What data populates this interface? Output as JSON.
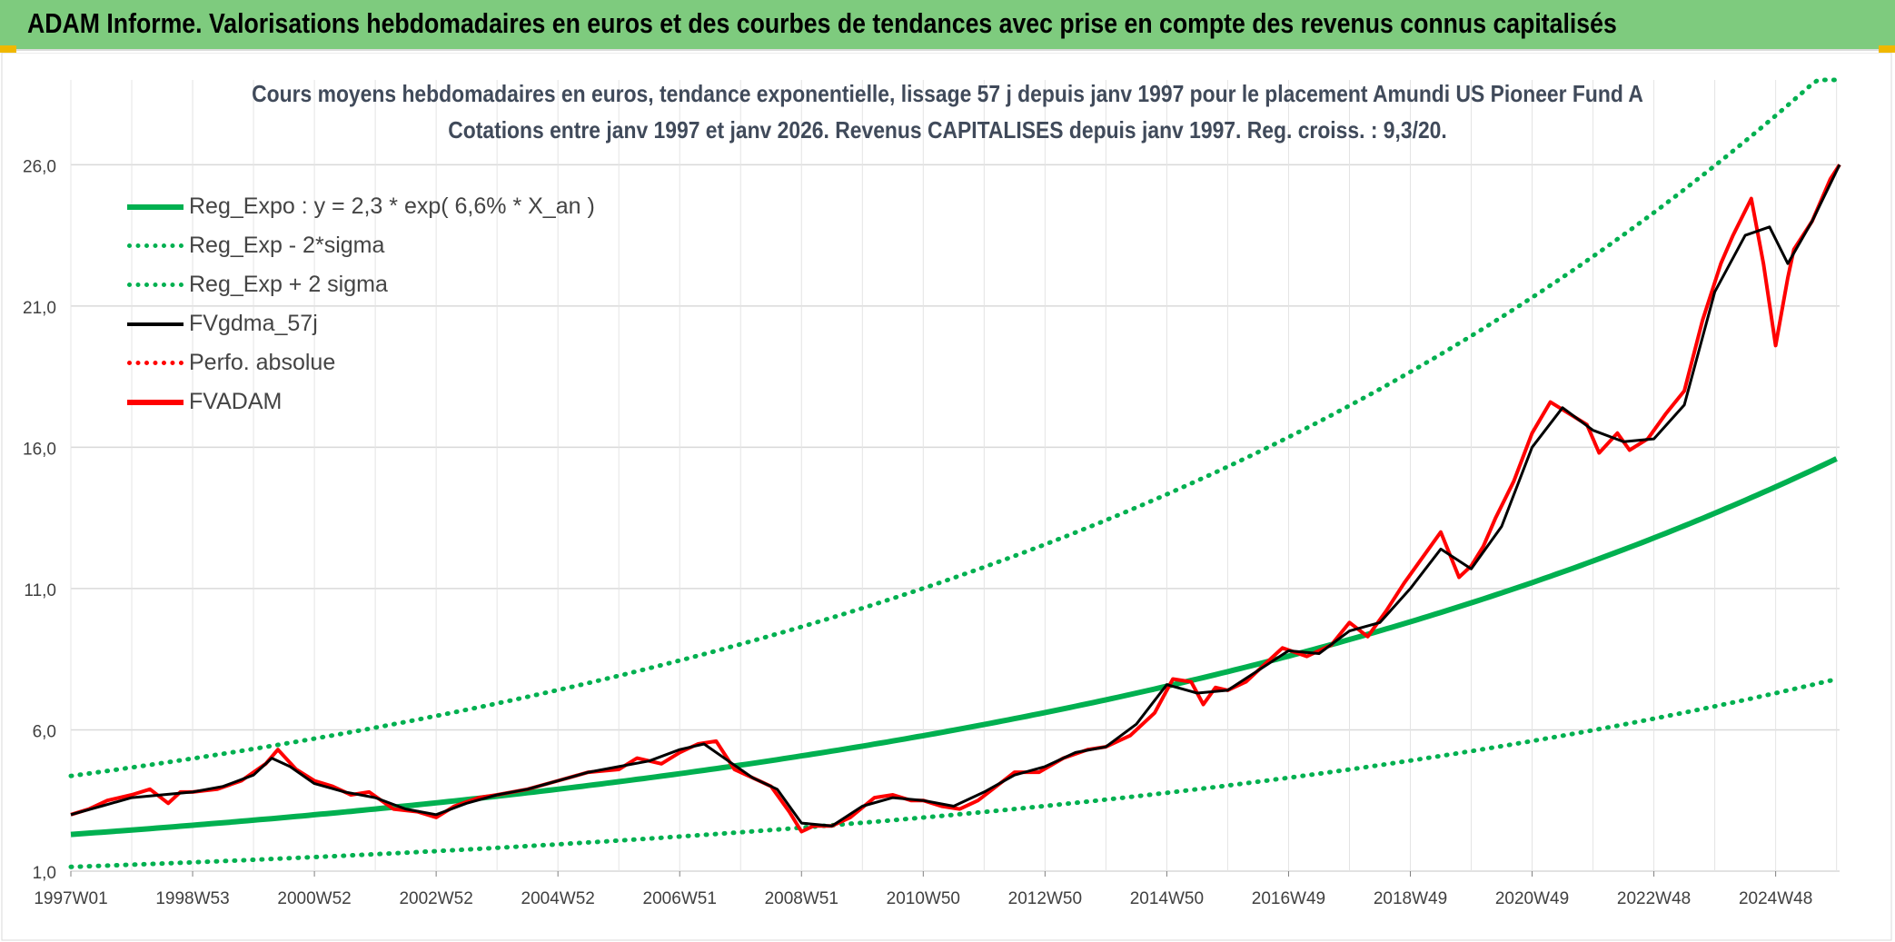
{
  "header": {
    "title": "ADAM Informe. Valorisations hebdomadaires en euros et des courbes de tendances avec prise en compte des revenus connus capitalisés"
  },
  "colors": {
    "header_bg": "#7ecb7e",
    "reg_expo": "#00b050",
    "fvgdma": "#000000",
    "fvadam": "#ff0000",
    "grid": "#d9d9d9"
  },
  "chart_data": {
    "type": "line",
    "title": "Cours moyens hebdomadaires en euros, tendance exponentielle, lissage 57 j depuis janv 1997 pour le placement Amundi US Pioneer Fund A",
    "subtitle": "Cotations entre janv 1997 et janv 2026. Revenus CAPITALISES depuis janv 1997. Reg. croiss. : 9,3/20.",
    "xlabel": "",
    "ylabel": "",
    "ylim": [
      1.0,
      29.0
    ],
    "y_ticks": [
      "1,0",
      "6,0",
      "11,0",
      "16,0",
      "21,0",
      "26,0"
    ],
    "y_tick_values": [
      1,
      6,
      11,
      16,
      21,
      26
    ],
    "x_ticks": [
      "1997W01",
      "1998W53",
      "2000W52",
      "2002W52",
      "2004W52",
      "2006W51",
      "2008W51",
      "2010W50",
      "2012W50",
      "2014W50",
      "2016W49",
      "2018W49",
      "2020W49",
      "2022W48",
      "2024W48"
    ],
    "x_range_years": [
      1997.0,
      2026.05
    ],
    "grid": true,
    "legend_position": "top-left",
    "legend": [
      {
        "label": "Reg_Expo : y = 2,3 * exp( 6,6% *  X_an )",
        "color": "#00b050",
        "style": "solid-thick"
      },
      {
        "label": "Reg_Exp - 2*sigma",
        "color": "#00b050",
        "style": "dotted"
      },
      {
        "label": "Reg_Exp + 2 sigma",
        "color": "#00b050",
        "style": "dotted"
      },
      {
        "label": "FVgdma_57j",
        "color": "#000000",
        "style": "solid"
      },
      {
        "label": "Perfo. absolue",
        "color": "#ff0000",
        "style": "dotted"
      },
      {
        "label": "FVADAM",
        "color": "#ff0000",
        "style": "solid-thick"
      }
    ],
    "regression": {
      "a": 2.3,
      "rate": 0.066,
      "lower_factor": 0.5,
      "upper_factor": 1.9,
      "upper_cap": 29.0
    },
    "series": [
      {
        "name": "FVADAM",
        "x": [
          1997.0,
          1997.3,
          1997.6,
          1998.0,
          1998.3,
          1998.6,
          1998.8,
          1999.0,
          1999.4,
          1999.8,
          2000.0,
          2000.2,
          2000.4,
          2000.7,
          2001.0,
          2001.3,
          2001.6,
          2001.9,
          2002.3,
          2002.7,
          2003.0,
          2003.3,
          2003.7,
          2004.0,
          2004.5,
          2005.0,
          2005.5,
          2006.0,
          2006.3,
          2006.7,
          2007.0,
          2007.3,
          2007.6,
          2007.9,
          2008.2,
          2008.5,
          2008.8,
          2009.0,
          2009.2,
          2009.5,
          2009.8,
          2010.2,
          2010.5,
          2010.8,
          2011.0,
          2011.3,
          2011.6,
          2011.9,
          2012.2,
          2012.5,
          2012.9,
          2013.3,
          2013.7,
          2014.0,
          2014.4,
          2014.8,
          2015.1,
          2015.4,
          2015.6,
          2015.8,
          2016.0,
          2016.3,
          2016.6,
          2016.9,
          2017.3,
          2017.7,
          2018.0,
          2018.3,
          2018.6,
          2018.9,
          2019.2,
          2019.5,
          2019.8,
          2020.0,
          2020.2,
          2020.4,
          2020.7,
          2021.0,
          2021.3,
          2021.6,
          2021.9,
          2022.1,
          2022.4,
          2022.6,
          2022.9,
          2023.2,
          2023.5,
          2023.8,
          2024.1,
          2024.3,
          2024.6,
          2024.8,
          2025.0,
          2025.2,
          2025.3,
          2025.6,
          2025.9,
          2026.05
        ],
        "values": [
          3.0,
          3.2,
          3.5,
          3.7,
          3.9,
          3.4,
          3.8,
          3.8,
          3.9,
          4.2,
          4.5,
          4.8,
          5.3,
          4.6,
          4.2,
          4.0,
          3.7,
          3.8,
          3.2,
          3.1,
          2.9,
          3.3,
          3.6,
          3.7,
          3.9,
          4.2,
          4.5,
          4.6,
          5.0,
          4.8,
          5.2,
          5.5,
          5.6,
          4.6,
          4.3,
          4.0,
          3.1,
          2.4,
          2.6,
          2.6,
          2.9,
          3.6,
          3.7,
          3.5,
          3.5,
          3.3,
          3.2,
          3.5,
          4.0,
          4.5,
          4.5,
          5.0,
          5.3,
          5.4,
          5.8,
          6.6,
          7.8,
          7.7,
          6.9,
          7.5,
          7.4,
          7.7,
          8.3,
          8.9,
          8.6,
          9.0,
          9.8,
          9.3,
          10.2,
          11.2,
          12.1,
          13.0,
          11.4,
          11.8,
          12.5,
          13.5,
          14.8,
          16.5,
          17.6,
          17.2,
          16.8,
          15.8,
          16.5,
          15.9,
          16.3,
          17.2,
          18.0,
          20.5,
          22.5,
          23.5,
          24.8,
          22.5,
          19.6,
          22.0,
          23.0,
          24.0,
          25.5,
          26.0
        ]
      },
      {
        "name": "FVgdma_57j",
        "x": [
          1997.0,
          1997.5,
          1998.0,
          1998.5,
          1999.0,
          1999.5,
          2000.0,
          2000.3,
          2000.6,
          2001.0,
          2001.5,
          2002.0,
          2002.5,
          2003.0,
          2003.5,
          2004.0,
          2004.5,
          2005.0,
          2005.5,
          2006.0,
          2006.5,
          2007.0,
          2007.4,
          2007.8,
          2008.2,
          2008.6,
          2009.0,
          2009.5,
          2010.0,
          2010.5,
          2011.0,
          2011.5,
          2012.0,
          2012.5,
          2013.0,
          2013.5,
          2014.0,
          2014.5,
          2015.0,
          2015.5,
          2016.0,
          2016.5,
          2017.0,
          2017.5,
          2018.0,
          2018.5,
          2019.0,
          2019.5,
          2020.0,
          2020.5,
          2021.0,
          2021.5,
          2022.0,
          2022.5,
          2023.0,
          2023.5,
          2024.0,
          2024.5,
          2024.9,
          2025.2,
          2025.6,
          2026.05
        ],
        "values": [
          3.0,
          3.3,
          3.6,
          3.7,
          3.8,
          4.0,
          4.4,
          5.0,
          4.7,
          4.1,
          3.8,
          3.6,
          3.2,
          3.0,
          3.4,
          3.7,
          3.9,
          4.2,
          4.5,
          4.7,
          4.9,
          5.3,
          5.5,
          4.9,
          4.3,
          3.9,
          2.7,
          2.6,
          3.3,
          3.6,
          3.5,
          3.3,
          3.8,
          4.4,
          4.7,
          5.2,
          5.4,
          6.2,
          7.6,
          7.3,
          7.4,
          8.1,
          8.8,
          8.7,
          9.5,
          9.8,
          11.0,
          12.4,
          11.7,
          13.2,
          16.0,
          17.4,
          16.6,
          16.2,
          16.3,
          17.5,
          21.5,
          23.5,
          23.8,
          22.5,
          24.0,
          26.0
        ]
      }
    ]
  }
}
